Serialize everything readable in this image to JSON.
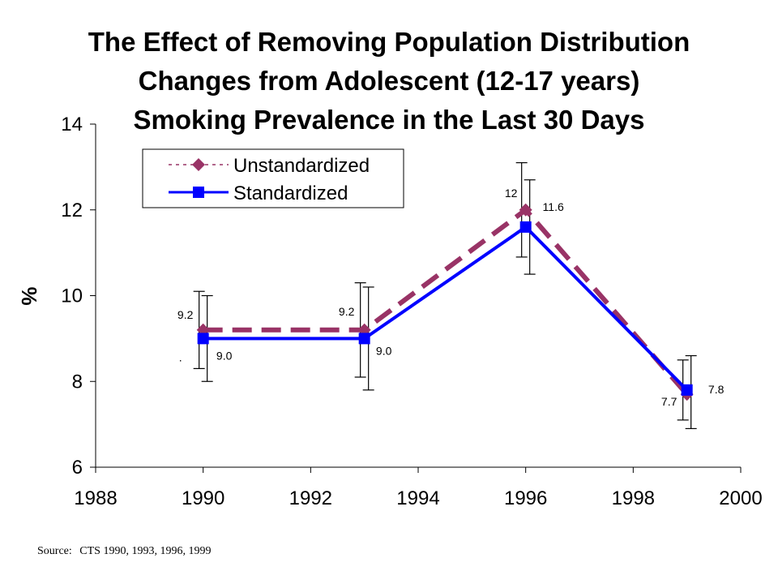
{
  "title_lines": [
    "The Effect of Removing Population Distribution",
    "Changes from Adolescent (12-17 years)",
    "Smoking Prevalence in the Last 30 Days"
  ],
  "source": {
    "label": "Source:",
    "text": "CTS 1990, 1993, 1996, 1999"
  },
  "chart_data": {
    "type": "line",
    "title": "The Effect of Removing Population Distribution Changes from Adolescent (12-17 years) Smoking Prevalence in the Last 30 Days",
    "xlabel": "",
    "ylabel": "%",
    "xlim": [
      1988,
      2000
    ],
    "ylim": [
      6,
      14
    ],
    "x_ticks": [
      1988,
      1990,
      1992,
      1994,
      1996,
      1998,
      2000
    ],
    "y_ticks": [
      6,
      8,
      10,
      12,
      14
    ],
    "grid": false,
    "legend_position": "top-left",
    "x": [
      1990,
      1993,
      1996,
      1999
    ],
    "series": [
      {
        "name": "Unstandardized",
        "values": [
          9.2,
          9.2,
          12.0,
          7.7
        ],
        "labels": [
          "9.2",
          "9.2",
          "12",
          "7.7"
        ],
        "error_low": [
          8.3,
          8.1,
          10.9,
          7.1
        ],
        "error_high": [
          10.1,
          10.3,
          13.1,
          8.5
        ],
        "color": "#993366",
        "line_style": "dashed",
        "marker": "diamond"
      },
      {
        "name": "Standardized",
        "values": [
          9.0,
          9.0,
          11.6,
          7.8
        ],
        "labels": [
          "9.0",
          "9.0",
          "11.6",
          "7.8"
        ],
        "error_low": [
          8.0,
          7.8,
          10.5,
          6.9
        ],
        "error_high": [
          10.0,
          10.2,
          12.7,
          8.6
        ],
        "color": "#0000FF",
        "line_style": "solid",
        "marker": "square"
      }
    ],
    "annotations": [
      "."
    ]
  }
}
